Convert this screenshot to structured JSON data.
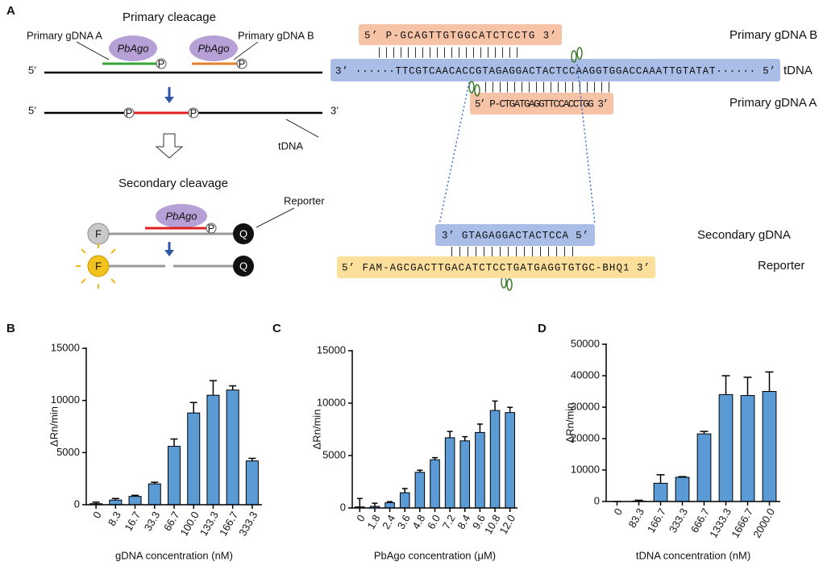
{
  "panels": [
    "A",
    "B",
    "C",
    "D"
  ],
  "diagram": {
    "primary_title": "Primary cleacage",
    "gdna_a_label": "Primary gDNA A",
    "gdna_b_label": "Primary gDNA B",
    "enzyme": [
      "PbAgo",
      "PbAgo",
      "PbAgo"
    ],
    "strand_ends": [
      "5’",
      "3’",
      "5’",
      "3’"
    ],
    "phosphate": [
      "P",
      "P",
      "P",
      "P",
      "P"
    ],
    "tdna_label": "tDNA",
    "secondary_title": "Secondary cleavage",
    "reporter_label": "Reporter",
    "fluor": [
      "F",
      "F"
    ],
    "quencher": [
      "Q",
      "Q"
    ],
    "seq_gdna_b": "5’ P-GCAGTTGTGGCATCTCCTG 3’",
    "seq_tdna": "3’ ······TTCGTCAACACCGTAGAGGACTACTCCAAGGTGGACCAAATTGTATAT······ 5’",
    "seq_gdna_a": "5’ P-CTGATGAGGTTCCACCTGG 3’",
    "seq_secondary": "3’ GTAGAGGACTACTCCA 5’",
    "seq_reporter": "5’ FAM-AGCGACTTGACATCTCCTGATGAGGTGTGC-BHQ1 3’",
    "name_gdna_b": "Primary gDNA B",
    "name_tdna": "tDNA",
    "name_gdna_a": "Primary gDNA A",
    "name_secondary": "Secondary gDNA",
    "name_reporter": "Reporter"
  },
  "chart_data": [
    {
      "type": "bar",
      "ylabel": "ΔRn/min",
      "xlabel": "gDNA concentration (nM)",
      "color": "#5b9bd5",
      "categories": [
        "0",
        "8.3",
        "16.7",
        "33.3",
        "66.7",
        "100.0",
        "133.3",
        "166.7",
        "333.3"
      ],
      "values": [
        100,
        450,
        800,
        2000,
        5600,
        8800,
        10500,
        11000,
        4200
      ],
      "errors": [
        150,
        150,
        100,
        150,
        700,
        1000,
        1400,
        400,
        250
      ],
      "ylim": [
        0,
        15000
      ],
      "yticks": [
        0,
        5000,
        10000,
        15000
      ]
    },
    {
      "type": "bar",
      "ylabel": "ΔRn/min",
      "xlabel": "PbAgo concentration (μM)",
      "color": "#5b9bd5",
      "categories": [
        "0",
        "1.8",
        "2.4",
        "3.6",
        "4.8",
        "6.0",
        "7.2",
        "8.4",
        "9.6",
        "10.8",
        "12.0"
      ],
      "values": [
        100,
        150,
        500,
        1450,
        3400,
        4600,
        6700,
        6400,
        7200,
        9300,
        9100
      ],
      "errors": [
        800,
        300,
        100,
        400,
        200,
        200,
        600,
        400,
        800,
        900,
        500
      ],
      "ylim": [
        0,
        15000
      ],
      "yticks": [
        0,
        5000,
        10000,
        15000
      ]
    },
    {
      "type": "bar",
      "ylabel": "ΔRn/min",
      "xlabel": "tDNA concentration (nM)",
      "color": "#5b9bd5",
      "categories": [
        "0",
        "83.3",
        "166.7",
        "333.3",
        "666.7",
        "1333.3",
        "1666.7",
        "2000.0"
      ],
      "values": [
        0,
        100,
        5800,
        7700,
        21500,
        34000,
        33700,
        35000
      ],
      "errors": [
        0,
        300,
        2700,
        200,
        800,
        6000,
        5800,
        6200
      ],
      "ylim": [
        0,
        50000
      ],
      "yticks": [
        0,
        10000,
        20000,
        30000,
        40000,
        50000
      ]
    }
  ]
}
